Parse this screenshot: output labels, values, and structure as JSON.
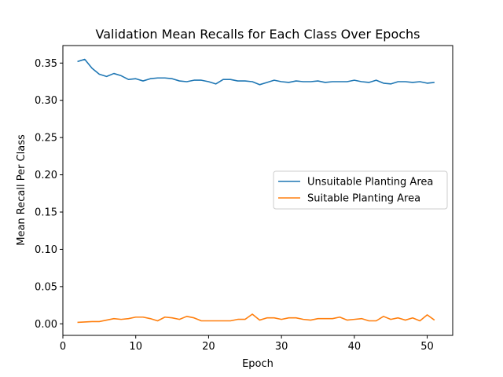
{
  "chart_data": {
    "type": "line",
    "title": "Validation Mean Recalls for Each Class Over Epochs",
    "xlabel": "Epoch",
    "ylabel": "Mean Recall Per Class",
    "xlim": [
      0,
      53.5
    ],
    "ylim": [
      -0.0155,
      0.3735
    ],
    "x_ticks": [
      0,
      10,
      20,
      30,
      40,
      50
    ],
    "y_ticks": [
      0.0,
      0.05,
      0.1,
      0.15,
      0.2,
      0.25,
      0.3,
      0.35
    ],
    "x_tick_labels": [
      "0",
      "10",
      "20",
      "30",
      "40",
      "50"
    ],
    "y_tick_labels": [
      "0.00",
      "0.05",
      "0.10",
      "0.15",
      "0.20",
      "0.25",
      "0.30",
      "0.35"
    ],
    "x": [
      2,
      3,
      4,
      5,
      6,
      7,
      8,
      9,
      10,
      11,
      12,
      13,
      14,
      15,
      16,
      17,
      18,
      19,
      20,
      21,
      22,
      23,
      24,
      25,
      26,
      27,
      28,
      29,
      30,
      31,
      32,
      33,
      34,
      35,
      36,
      37,
      38,
      39,
      40,
      41,
      42,
      43,
      44,
      45,
      46,
      47,
      48,
      49,
      50,
      51
    ],
    "series": [
      {
        "name": "Unsuitable Planting Area",
        "color": "#1f77b4",
        "values": [
          0.352,
          0.355,
          0.343,
          0.335,
          0.332,
          0.336,
          0.333,
          0.328,
          0.329,
          0.326,
          0.329,
          0.33,
          0.33,
          0.329,
          0.326,
          0.325,
          0.327,
          0.327,
          0.325,
          0.322,
          0.328,
          0.328,
          0.326,
          0.326,
          0.325,
          0.321,
          0.324,
          0.327,
          0.325,
          0.324,
          0.326,
          0.325,
          0.325,
          0.326,
          0.324,
          0.325,
          0.325,
          0.325,
          0.327,
          0.325,
          0.324,
          0.327,
          0.323,
          0.322,
          0.325,
          0.325,
          0.324,
          0.325,
          0.323,
          0.324
        ]
      },
      {
        "name": "Suitable Planting Area",
        "color": "#ff7f0e",
        "values": [
          0.002,
          0.0025,
          0.003,
          0.003,
          0.005,
          0.007,
          0.006,
          0.007,
          0.009,
          0.009,
          0.007,
          0.004,
          0.009,
          0.008,
          0.006,
          0.01,
          0.008,
          0.004,
          0.004,
          0.004,
          0.004,
          0.004,
          0.006,
          0.006,
          0.013,
          0.005,
          0.008,
          0.008,
          0.006,
          0.008,
          0.008,
          0.006,
          0.005,
          0.007,
          0.007,
          0.007,
          0.009,
          0.005,
          0.006,
          0.007,
          0.004,
          0.004,
          0.01,
          0.006,
          0.008,
          0.005,
          0.008,
          0.004,
          0.012,
          0.005
        ]
      }
    ],
    "grid": false,
    "legend_position": "center-right"
  }
}
